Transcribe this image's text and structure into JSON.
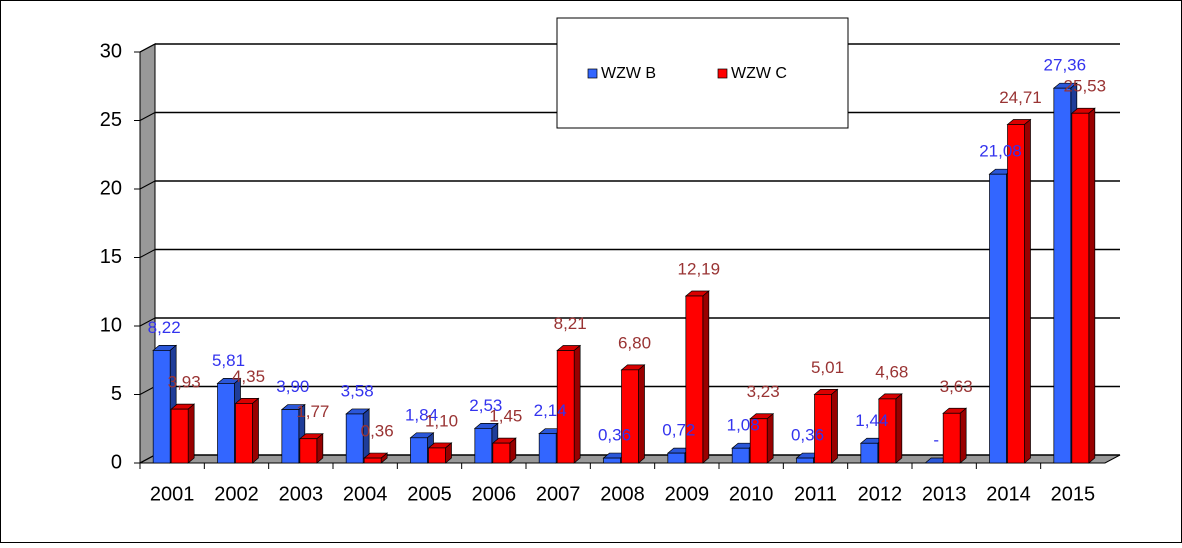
{
  "chart_data": {
    "type": "bar3d",
    "categories": [
      "2001",
      "2002",
      "2003",
      "2004",
      "2005",
      "2006",
      "2007",
      "2008",
      "2009",
      "2010",
      "2011",
      "2012",
      "2013",
      "2014",
      "2015"
    ],
    "series": [
      {
        "name": "WZW B",
        "color": "#3366ff",
        "label_color": "#3333ee",
        "values": [
          8.22,
          5.81,
          3.9,
          3.58,
          1.84,
          2.53,
          2.14,
          0.36,
          0.72,
          1.08,
          0.36,
          1.44,
          0,
          21.08,
          27.36
        ],
        "value_labels": [
          "8,22",
          "5,81",
          "3,90",
          "3,58",
          "1,84",
          "2,53",
          "2,14",
          "0,36",
          "0,72",
          "1,08",
          "0,36",
          "1,44",
          "-",
          "21,08",
          "27,36"
        ]
      },
      {
        "name": "WZW C",
        "color": "#ff0000",
        "label_color": "#993333",
        "values": [
          3.93,
          4.35,
          1.77,
          0.36,
          1.1,
          1.45,
          8.21,
          6.8,
          12.19,
          3.23,
          5.01,
          4.68,
          3.63,
          24.71,
          25.53
        ],
        "value_labels": [
          "3,93",
          "4,35",
          "1,77",
          "0,36",
          "1,10",
          "1,45",
          "8,21",
          "6,80",
          "12,19",
          "3,23",
          "5,01",
          "4,68",
          "3,63",
          "24,71",
          "25,53"
        ]
      }
    ],
    "ylim": [
      0,
      30
    ],
    "yticks": [
      0,
      5,
      10,
      15,
      20,
      25,
      30
    ],
    "grid": true
  }
}
